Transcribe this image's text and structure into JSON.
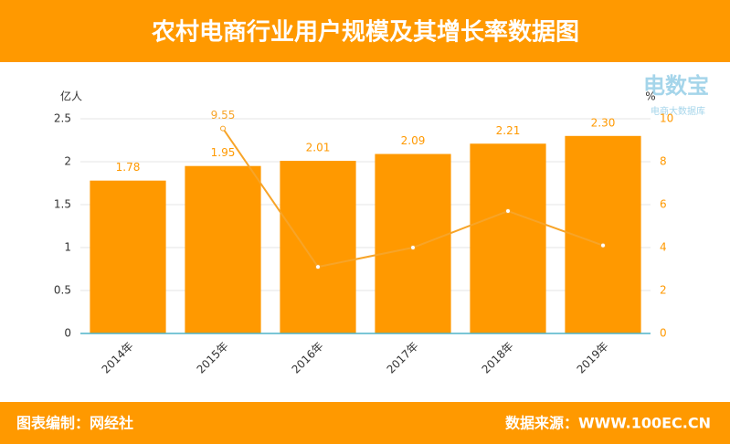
{
  "header": {
    "title": "农村电商行业用户规模及其增长率数据图"
  },
  "watermark": {
    "title": "电数宝",
    "subtitle": "电商大数据库"
  },
  "chart_data": {
    "type": "bar",
    "ylabel": "亿人",
    "y2label": "%",
    "categories": [
      "2014年",
      "2015年",
      "2016年",
      "2017年",
      "2018年",
      "2019年"
    ],
    "series": [
      {
        "type": "bar",
        "color": "#ff9900",
        "values": [
          1.78,
          1.95,
          2.01,
          2.09,
          2.21,
          2.3
        ],
        "value_labels": [
          "1.78",
          "1.95",
          "2.01",
          "2.09",
          "2.21",
          "2.30"
        ]
      },
      {
        "type": "line",
        "axis": "y2",
        "color": "#f7a428",
        "values": [
          null,
          9.55,
          3.1,
          4.0,
          5.7,
          4.1
        ],
        "value_labels": [
          null,
          "9.55",
          null,
          null,
          null,
          null
        ]
      }
    ],
    "ylim": [
      0,
      2.5
    ],
    "yticks": [
      0,
      0.5,
      1,
      1.5,
      2,
      2.5
    ],
    "y2lim": [
      0,
      10
    ],
    "y2ticks": [
      0,
      2,
      4,
      6,
      8,
      10
    ],
    "grid": true
  },
  "footer": {
    "left": "图表编制：网经社",
    "right": "数据来源：WWW.100EC.CN"
  }
}
